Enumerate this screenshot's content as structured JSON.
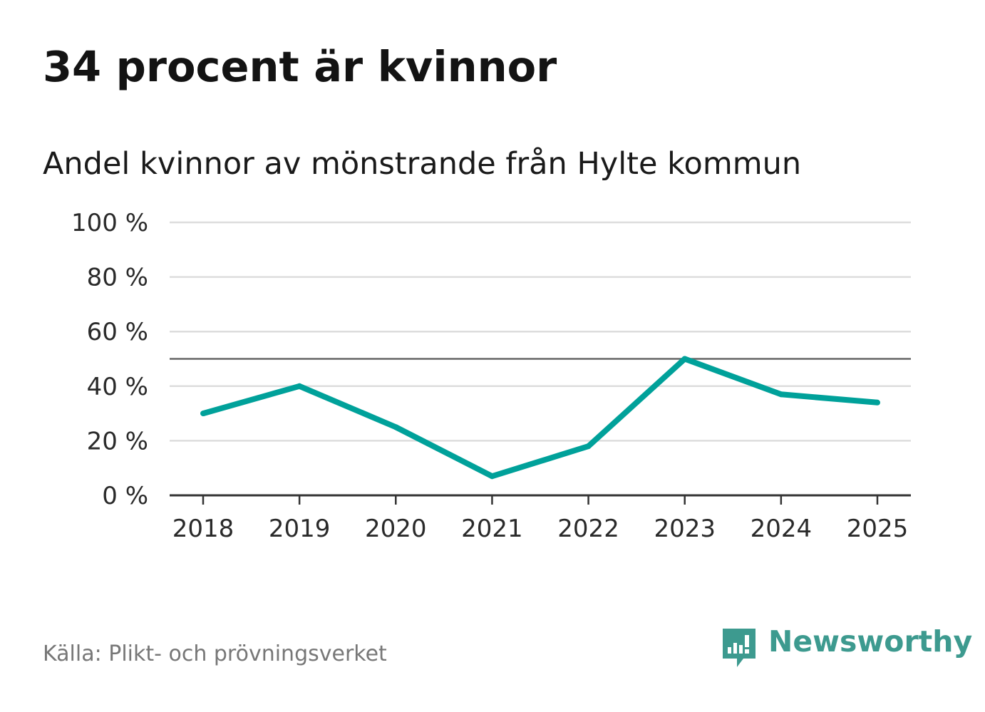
{
  "title": "34 procent är kvinnor",
  "subtitle": "Andel kvinnor av mönstrande från Hylte kommun",
  "source": "Källa: Plikt- och prövningsverket",
  "brand": {
    "name": "Newsworthy",
    "icon": "newsworthy-logo-icon",
    "color": "#3d9a8f"
  },
  "chart_data": {
    "type": "line",
    "title": "34 procent är kvinnor",
    "subtitle": "Andel kvinnor av mönstrande från Hylte kommun",
    "xlabel": "",
    "ylabel": "",
    "categories": [
      "2018",
      "2019",
      "2020",
      "2021",
      "2022",
      "2023",
      "2024",
      "2025"
    ],
    "series": [
      {
        "name": "Andel kvinnor",
        "values": [
          30,
          40,
          25,
          7,
          18,
          50,
          37,
          34
        ],
        "color": "#00a19a"
      }
    ],
    "ylim": [
      0,
      100
    ],
    "yticks": [
      0,
      20,
      40,
      60,
      80,
      100
    ],
    "ytick_labels": [
      "0 %",
      "20 %",
      "40 %",
      "60 %",
      "80 %",
      "100 %"
    ],
    "reference_line": 50,
    "grid": true,
    "colors": {
      "line": "#00a19a",
      "grid": "#dddddd",
      "reference": "#666666",
      "axis": "#333333"
    }
  }
}
